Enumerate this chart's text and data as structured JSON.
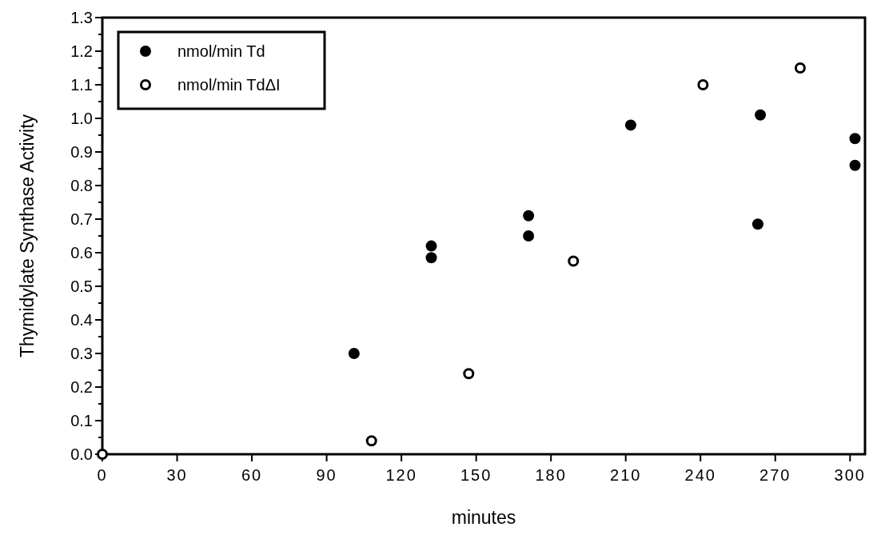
{
  "chart_data": {
    "type": "scatter",
    "xlabel": "minutes",
    "ylabel": "Thymidylate Synthase Activity",
    "xlim": [
      0,
      306
    ],
    "xticks": [
      0,
      30,
      60,
      90,
      120,
      150,
      180,
      210,
      240,
      270,
      300
    ],
    "ylim": [
      0,
      1.3
    ],
    "yticks": [
      {
        "value": 0,
        "label": "0.0"
      },
      {
        "value": 0.05,
        "label": null
      },
      {
        "value": 0.1,
        "label": "0.1"
      },
      {
        "value": 0.15,
        "label": null
      },
      {
        "value": 0.2,
        "label": "0.2"
      },
      {
        "value": 0.25,
        "label": null
      },
      {
        "value": 0.3,
        "label": "0.3"
      },
      {
        "value": 0.35,
        "label": null
      },
      {
        "value": 0.4,
        "label": "0.4"
      },
      {
        "value": 0.45,
        "label": null
      },
      {
        "value": 0.5,
        "label": "0.5"
      },
      {
        "value": 0.55,
        "label": null
      },
      {
        "value": 0.6,
        "label": "0.6"
      },
      {
        "value": 0.65,
        "label": null
      },
      {
        "value": 0.7,
        "label": "0.7"
      },
      {
        "value": 0.75,
        "label": null
      },
      {
        "value": 0.8,
        "label": "0.8"
      },
      {
        "value": 0.85,
        "label": null
      },
      {
        "value": 0.9,
        "label": "0.9"
      },
      {
        "value": 0.95,
        "label": null
      },
      {
        "value": 1,
        "label": "1.0"
      },
      {
        "value": 1.05,
        "label": null
      },
      {
        "value": 1.1,
        "label": "1.1"
      },
      {
        "value": 1.15,
        "label": null
      },
      {
        "value": 1.2,
        "label": "1.2"
      },
      {
        "value": 1.25,
        "label": null
      },
      {
        "value": 1.3,
        "label": "1.3"
      }
    ],
    "marker": "circle",
    "legend": "top left",
    "grid": false,
    "series": [
      {
        "name": "nmol/min Td",
        "color": "#000000",
        "x": [
          101,
          132,
          132,
          171,
          171,
          212,
          264,
          263,
          302,
          302
        ],
        "values": [
          0.3,
          0.62,
          0.585,
          0.71,
          0.65,
          0.98,
          1.01,
          0.685,
          0.94,
          0.86
        ]
      },
      {
        "name": "nmol/min TdΔI",
        "color": "#000000",
        "x": [
          0,
          108,
          147,
          189,
          241,
          280
        ],
        "values": [
          0,
          0.04,
          0.24,
          0.575,
          1.1,
          1.15
        ]
      }
    ]
  }
}
